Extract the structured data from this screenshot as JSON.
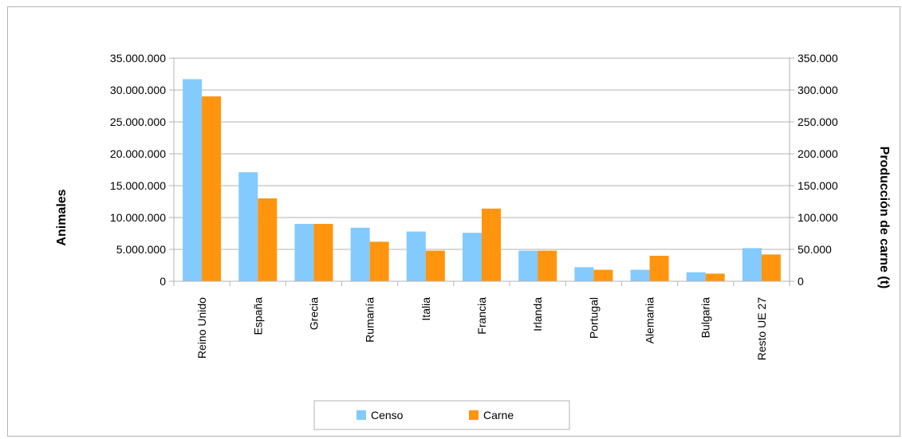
{
  "chart_data": {
    "type": "bar",
    "categories": [
      "Reino Unido",
      "España",
      "Grecia",
      "Rumanía",
      "Italia",
      "Francia",
      "Irlanda",
      "Portugal",
      "Alemania",
      "Bulgaria",
      "Resto UE 27"
    ],
    "series": [
      {
        "name": "Censo",
        "axis": "left",
        "color": "#83caff",
        "values": [
          31700000,
          17100000,
          9000000,
          8400000,
          7800000,
          7600000,
          4800000,
          2200000,
          1800000,
          1400000,
          5200000
        ]
      },
      {
        "name": "Carne",
        "axis": "right",
        "color": "#ff950e",
        "values": [
          290000,
          130000,
          90000,
          62000,
          48000,
          114000,
          48000,
          18000,
          40000,
          12000,
          42000
        ]
      }
    ],
    "ylabel": "Animales",
    "y2label": "Producción de carne (t)",
    "ylim": [
      0,
      35000000
    ],
    "y2lim": [
      0,
      350000
    ],
    "yticks": [
      "0",
      "5.000.000",
      "10.000.000",
      "15.000.000",
      "20.000.000",
      "25.000.000",
      "30.000.000",
      "35.000.000"
    ],
    "y2ticks": [
      "0",
      "50.000",
      "100.000",
      "150.000",
      "200.000",
      "250.000",
      "300.000",
      "350.000"
    ],
    "grid": true,
    "legend_position": "bottom"
  }
}
